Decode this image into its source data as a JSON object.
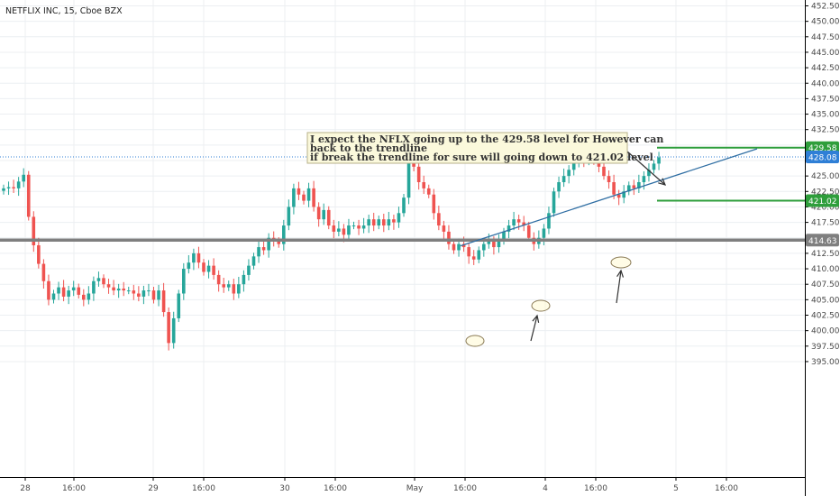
{
  "chart_data": {
    "type": "candlestick",
    "title": "NETFLIX INC, 15, Cboe BZX",
    "ylim": [
      395,
      453
    ],
    "grid": true,
    "y_ticks": [
      "395.00",
      "397.50",
      "400.00",
      "402.50",
      "405.00",
      "407.50",
      "410.00",
      "412.50",
      "415.00",
      "417.50",
      "420.00",
      "422.50",
      "425.00",
      "427.50",
      "430.00",
      "432.50",
      "435.00",
      "437.50",
      "440.00",
      "442.50",
      "445.00",
      "447.50",
      "450.00",
      "452.50"
    ],
    "x_ticks": [
      "28",
      "16:00",
      "29",
      "16:00",
      "30",
      "16:00",
      "May",
      "16:00",
      "4",
      "16:00",
      "5",
      "16:00"
    ],
    "candle_closes": [
      423.0,
      423.2,
      423.0,
      424.1,
      425.2,
      418.4,
      413.8,
      410.8,
      408.0,
      405.0,
      406.0,
      407.0,
      405.5,
      406.5,
      407.0,
      405.8,
      405.0,
      406.0,
      408.0,
      408.5,
      407.5,
      407.0,
      406.5,
      406.8,
      406.5,
      406.5,
      406.0,
      405.5,
      406.5,
      406.5,
      405.0,
      406.5,
      403.0,
      398.0,
      402.0,
      406.0,
      410.0,
      411.0,
      412.5,
      411.0,
      409.5,
      410.5,
      409.0,
      407.5,
      407.0,
      407.5,
      406.0,
      407.5,
      409.0,
      410.5,
      412.0,
      413.5,
      413.0,
      415.0,
      414.5,
      414.0,
      417.0,
      420.0,
      423.0,
      422.0,
      421.0,
      423.0,
      420.0,
      418.0,
      419.5,
      417.0,
      416.0,
      416.5,
      415.5,
      417.0,
      417.0,
      416.5,
      417.0,
      418.0,
      417.0,
      418.0,
      417.0,
      418.0,
      417.5,
      419.0,
      421.5,
      427.0,
      426.5,
      424.0,
      423.0,
      422.0,
      419.0,
      417.0,
      416.0,
      414.0,
      413.0,
      414.0,
      413.5,
      412.0,
      411.5,
      413.0,
      414.0,
      414.5,
      413.5,
      414.5,
      416.0,
      417.0,
      418.0,
      417.5,
      417.0,
      415.0,
      414.0,
      415.0,
      416.5,
      419.0,
      422.5,
      424.0,
      425.0,
      426.0,
      427.0,
      428.0,
      427.5,
      428.5,
      428.0,
      426.5,
      425.0,
      424.0,
      422.0,
      421.5,
      422.5,
      423.5,
      423.0,
      424.0,
      425.0,
      426.0,
      427.0,
      428.0
    ],
    "levels": [
      {
        "label": "429.58",
        "value": 429.58,
        "color": "#2e9e3b"
      },
      {
        "label": "428.08",
        "value": 428.08,
        "color": "#2f7fd6"
      },
      {
        "label": "421.02",
        "value": 421.02,
        "color": "#2e9e3b"
      },
      {
        "label": "414.63",
        "value": 414.63,
        "color": "#7f7f7f"
      }
    ],
    "trendline": {
      "from": [
        413.7,
        "May 16:00"
      ],
      "to": [
        429.4,
        "5 16:00"
      ],
      "color": "#2f6ea3"
    },
    "annotation": [
      "I expect the NFLX going up to the 429.58 level for However can",
      "back to the trendline",
      "if break the trendline for sure will going down to 421.02 level"
    ],
    "colors": {
      "up": "#26a69a",
      "down": "#ef5350",
      "grid": "#eceff2"
    }
  }
}
